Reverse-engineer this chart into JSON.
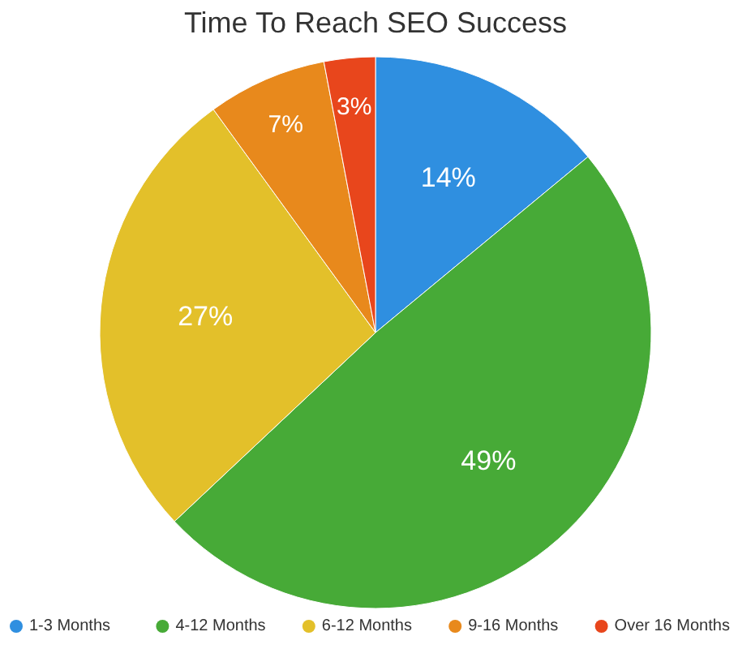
{
  "chart_data": {
    "type": "pie",
    "title": "Time To Reach SEO Success",
    "categories": [
      "1-3 Months",
      "4-12 Months",
      "6-12 Months",
      "9-16 Months",
      "Over 16 Months"
    ],
    "values": [
      14,
      49,
      27,
      7,
      3
    ],
    "colors": [
      "#2f8fe0",
      "#47aa37",
      "#e3c02a",
      "#e8891c",
      "#e8461c"
    ],
    "value_labels": [
      "14%",
      "49%",
      "27%",
      "7%",
      "3%"
    ],
    "legend": "bottom"
  }
}
